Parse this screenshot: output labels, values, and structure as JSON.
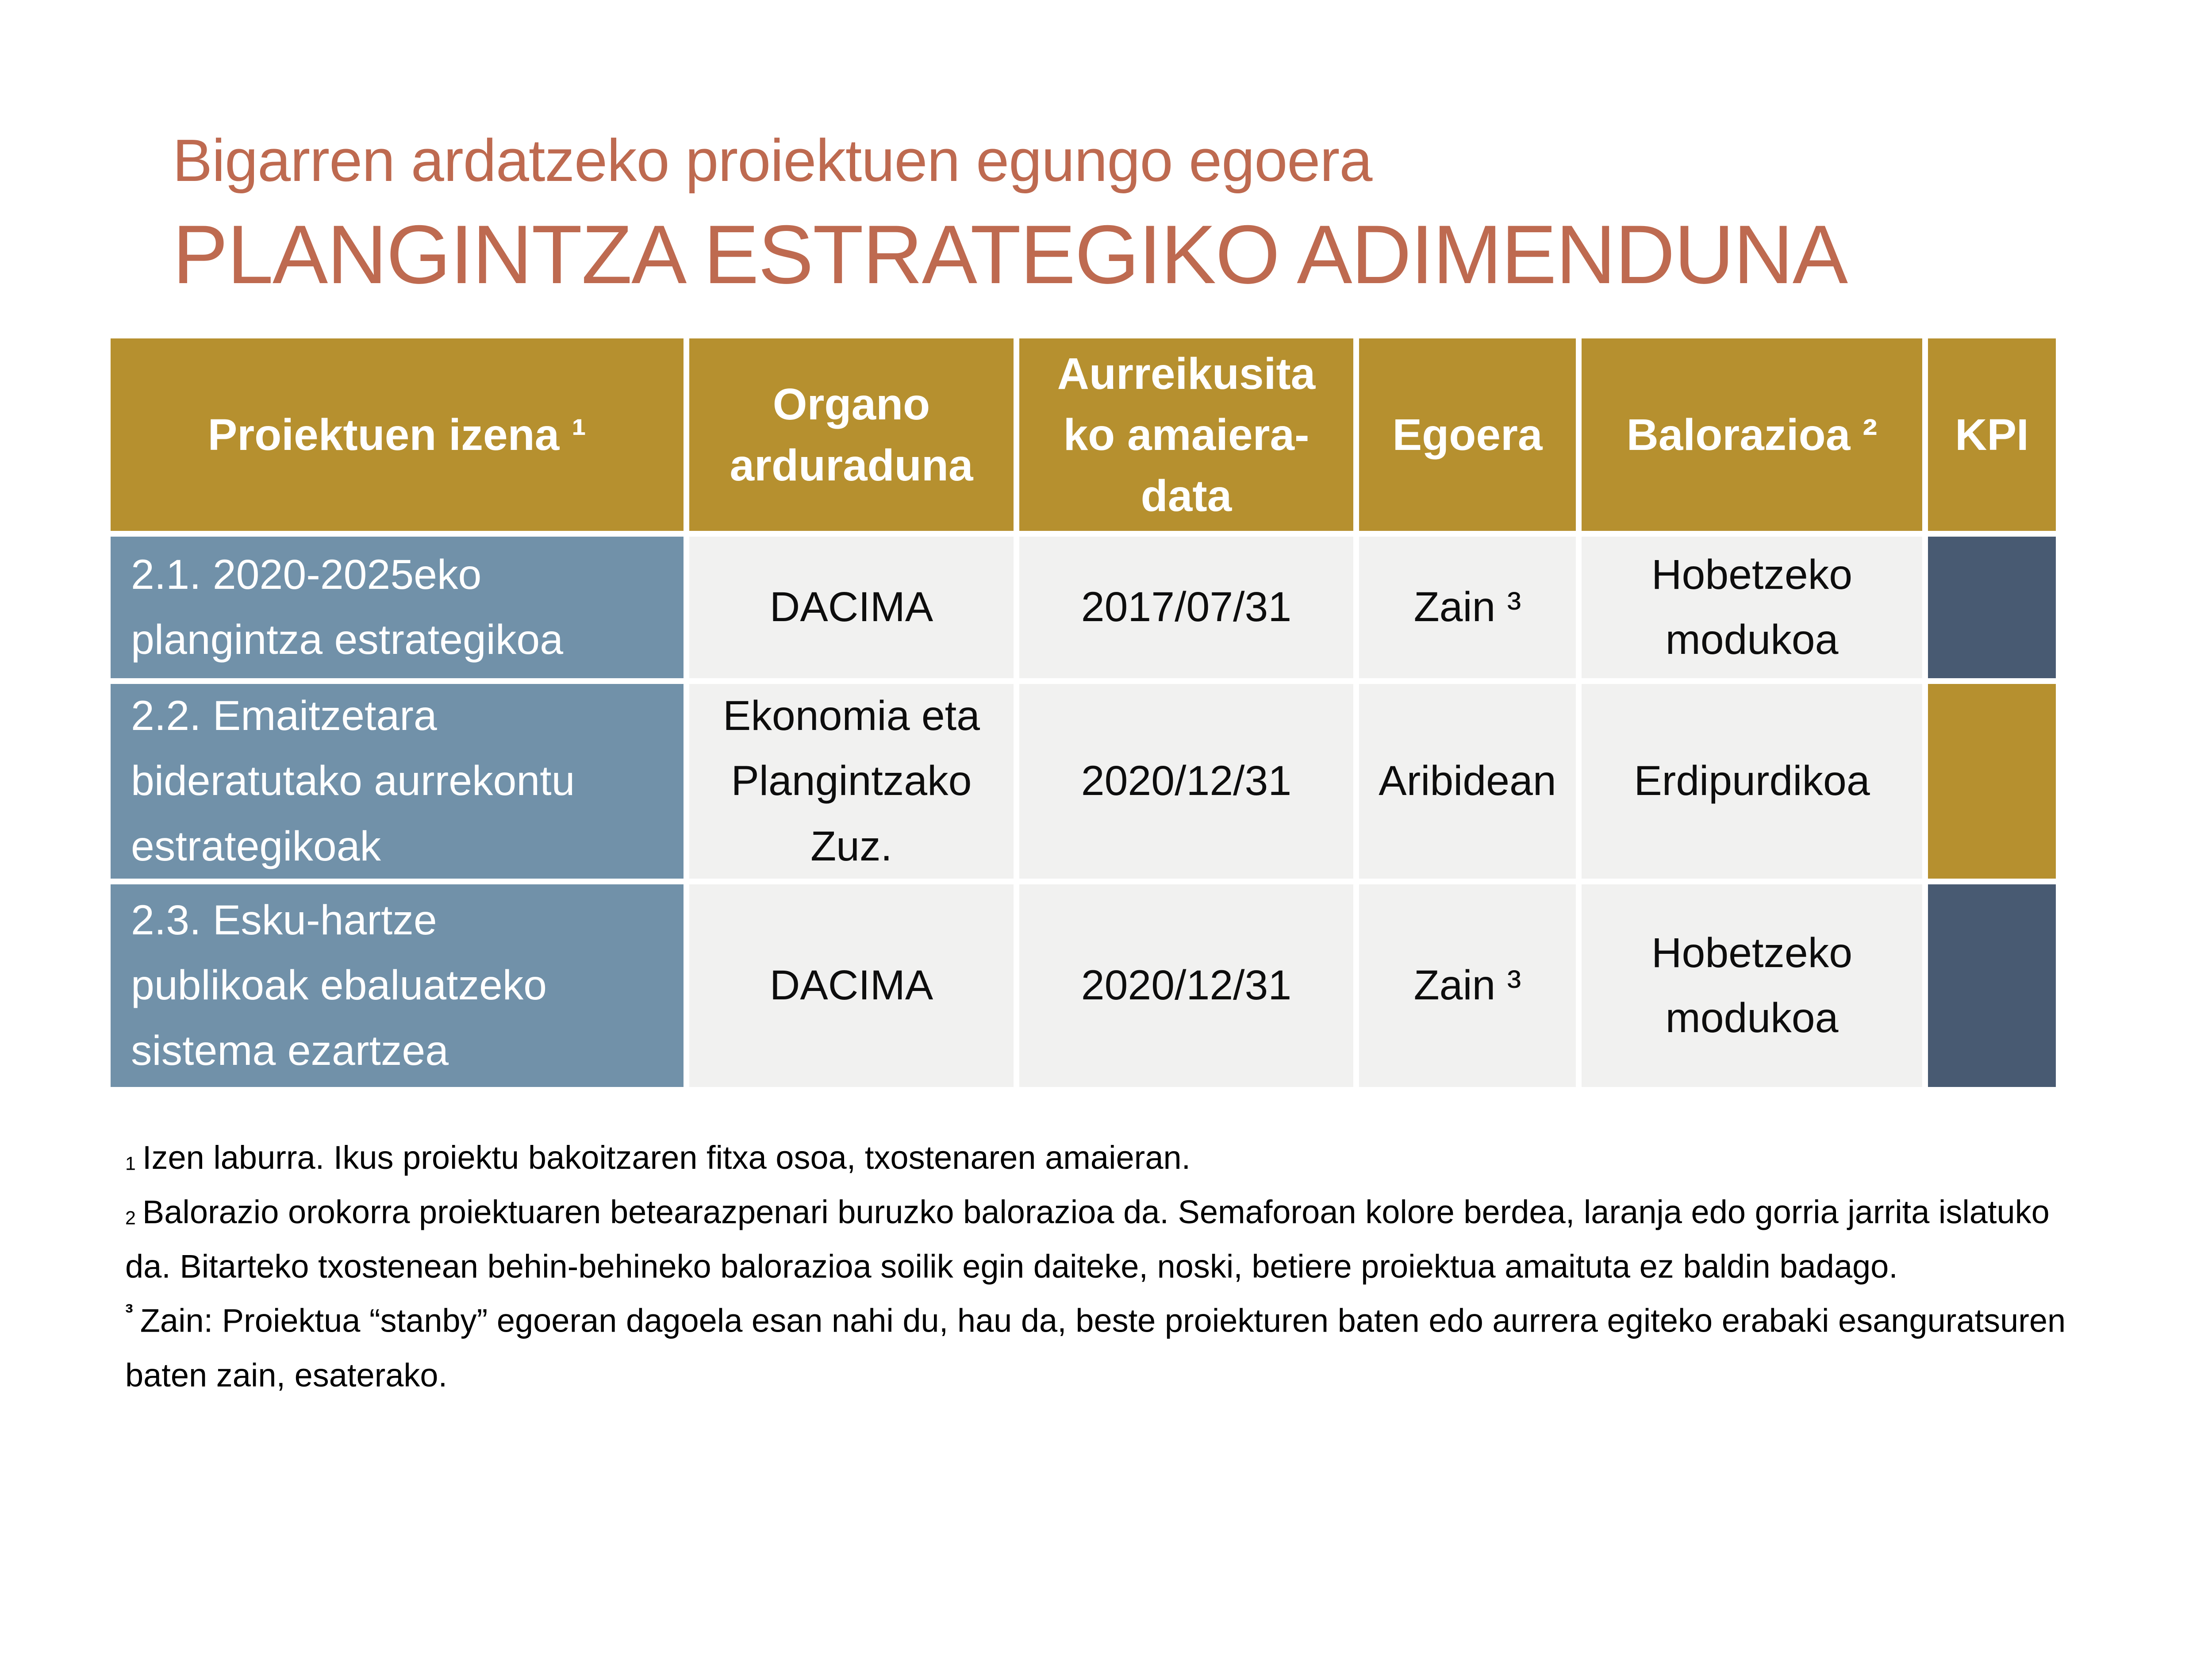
{
  "title": {
    "subtitle": "Bigarren ardatzeko proiektuen egungo egoera",
    "main": "PLANGINTZA ESTRATEGIKO ADIMENDUNA",
    "color": "#be6a50"
  },
  "theme": {
    "header_gold": "#b6902f",
    "project_slate_blue": "#7191a9",
    "kpi_navy": "#485a72",
    "kpi_gold": "#b6902f",
    "cell_gray": "#f1f1f0",
    "header_text": "#ffffff"
  },
  "table": {
    "headers": [
      {
        "label": "Proiektuen izena ¹"
      },
      {
        "label": "Organo\narduraduna"
      },
      {
        "label": "Aurreikusita\nko amaiera-\ndata"
      },
      {
        "label": "Egoera"
      },
      {
        "label": "Balorazioa ²"
      },
      {
        "label": "KPI"
      }
    ],
    "rows": [
      {
        "project": "2.1. 2020-2025eko\nplangintza estrategikoa",
        "organ": "DACIMA",
        "due_date": "2017/07/31",
        "status": "Zain ³",
        "assessment": "Hobetzeko\nmodukoa",
        "kpi": "navy"
      },
      {
        "project": "2.2. Emaitzetara\nbideratutako aurrekontu\nestrategikoak",
        "organ": "Ekonomia eta\nPlangintzako\nZuz.",
        "due_date": "2020/12/31",
        "status": "Aribidean",
        "assessment": "Erdipurdikoa",
        "kpi": "gold"
      },
      {
        "project": "2.3. Esku-hartze\npublikoak ebaluatzeko\nsistema ezartzea",
        "organ": "DACIMA",
        "due_date": "2020/12/31",
        "status": "Zain ³",
        "assessment": "Hobetzeko\nmodukoa",
        "kpi": "navy"
      }
    ]
  },
  "footnotes": [
    {
      "marker": "1",
      "text": "Izen laburra. Ikus proiektu bakoitzaren fitxa osoa, txostenaren amaieran."
    },
    {
      "marker": "2",
      "text": "Balorazio orokorra proiektuaren betearazpenari buruzko balorazioa da. Semaforoan kolore berdea, laranja edo gorria jarrita islatuko da. Bitarteko txostenean behin-behineko balorazioa soilik egin daiteke, noski, betiere proiektua amaituta ez baldin badago."
    },
    {
      "marker": "³",
      "text": "Zain: Proiektua “stanby” egoeran dagoela esan nahi du, hau da, beste proiekturen baten edo aurrera egiteko erabaki esanguratsuren baten zain, esaterako."
    }
  ]
}
